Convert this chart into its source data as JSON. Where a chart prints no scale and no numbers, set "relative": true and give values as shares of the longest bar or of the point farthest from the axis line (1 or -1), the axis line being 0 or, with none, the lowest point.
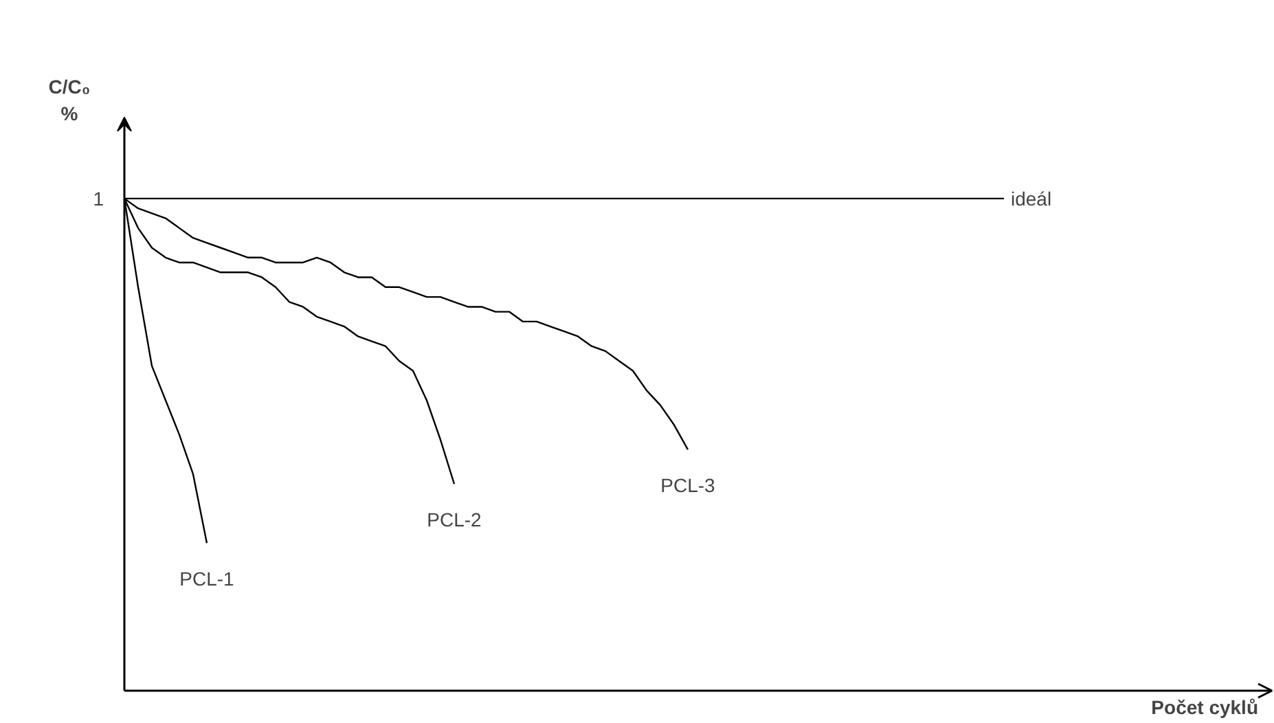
{
  "chart_data": {
    "type": "line",
    "relative": true,
    "xlabel": "Počet cyklů",
    "ylabel": "C/C₀\n%",
    "grid": false,
    "tick_labels": false,
    "annotations": [
      "1"
    ],
    "categories": [
      null,
      null,
      null,
      null,
      null,
      null,
      null,
      null,
      null,
      null,
      null,
      null,
      null,
      null,
      null,
      null,
      null,
      null,
      null,
      null,
      null,
      null,
      null,
      null,
      null,
      null,
      null,
      null,
      null,
      null,
      null,
      null,
      null,
      null,
      null,
      null,
      null,
      null,
      null,
      null,
      null,
      null,
      null,
      null,
      null,
      null,
      null,
      null,
      null,
      null,
      null,
      null,
      null,
      null,
      null,
      null,
      null,
      null,
      null,
      null,
      null,
      null,
      null,
      null,
      null,
      null,
      null,
      null,
      null,
      null,
      null,
      null,
      null,
      null,
      null,
      null,
      null,
      null,
      null,
      null,
      null,
      null,
      null,
      null
    ],
    "series": [
      {
        "name": "ideál",
        "color": "#000000",
        "values": [
          1,
          1,
          1,
          1,
          1,
          1,
          1,
          1,
          1,
          1,
          1,
          1,
          1,
          1,
          1,
          1,
          1,
          1,
          1,
          1,
          1,
          1,
          1,
          1,
          1,
          1,
          1,
          1,
          1,
          1,
          1,
          1,
          1,
          1,
          1,
          1,
          1,
          1,
          1,
          1,
          1,
          1,
          1,
          1,
          1,
          1,
          1,
          1,
          1,
          1,
          1,
          1,
          1,
          1,
          1,
          1,
          1,
          1,
          1,
          1,
          1,
          1,
          1,
          1,
          1,
          null,
          null,
          null,
          null,
          null,
          null,
          null,
          null,
          null,
          null,
          null,
          null,
          null,
          null,
          null,
          null,
          null,
          null,
          null
        ]
      },
      {
        "name": "PCL-1",
        "color": "#000000",
        "values": [
          1,
          0.82,
          0.66,
          0.59,
          0.52,
          0.44,
          0.3,
          null,
          null,
          null,
          null,
          null,
          null,
          null,
          null,
          null,
          null,
          null,
          null,
          null,
          null,
          null,
          null,
          null,
          null,
          null,
          null,
          null,
          null,
          null,
          null,
          null,
          null,
          null,
          null,
          null,
          null,
          null,
          null,
          null,
          null,
          null,
          null,
          null,
          null,
          null,
          null,
          null,
          null,
          null,
          null,
          null,
          null,
          null,
          null,
          null,
          null,
          null,
          null,
          null,
          null,
          null,
          null,
          null,
          null,
          null,
          null,
          null,
          null,
          null,
          null,
          null,
          null,
          null,
          null,
          null,
          null,
          null,
          null,
          null,
          null,
          null,
          null,
          null
        ]
      },
      {
        "name": "PCL-2",
        "color": "#000000",
        "values": [
          1,
          0.94,
          0.9,
          0.88,
          0.87,
          0.87,
          0.86,
          0.85,
          0.85,
          0.85,
          0.84,
          0.82,
          0.79,
          0.78,
          0.76,
          0.75,
          0.74,
          0.72,
          0.71,
          0.7,
          0.67,
          0.65,
          0.59,
          0.51,
          0.42,
          null,
          null,
          null,
          null,
          null,
          null,
          null,
          null,
          null,
          null,
          null,
          null,
          null,
          null,
          null,
          null,
          null,
          null,
          null,
          null,
          null,
          null,
          null,
          null,
          null,
          null,
          null,
          null,
          null,
          null,
          null,
          null,
          null,
          null,
          null,
          null,
          null,
          null,
          null,
          null,
          null,
          null,
          null,
          null,
          null,
          null,
          null,
          null,
          null,
          null,
          null,
          null,
          null,
          null,
          null,
          null,
          null,
          null,
          null
        ]
      },
      {
        "name": "PCL-3",
        "color": "#000000",
        "values": [
          1,
          0.98,
          0.97,
          0.96,
          0.94,
          0.92,
          0.91,
          0.9,
          0.89,
          0.88,
          0.88,
          0.87,
          0.87,
          0.87,
          0.88,
          0.87,
          0.85,
          0.84,
          0.84,
          0.82,
          0.82,
          0.81,
          0.8,
          0.8,
          0.79,
          0.78,
          0.78,
          0.77,
          0.77,
          0.75,
          0.75,
          0.74,
          0.73,
          0.72,
          0.7,
          0.69,
          0.67,
          0.65,
          0.61,
          0.58,
          0.54,
          0.49,
          null,
          null,
          null,
          null,
          null,
          null,
          null,
          null,
          null,
          null,
          null,
          null,
          null,
          null,
          null,
          null,
          null,
          null,
          null,
          null,
          null,
          null,
          null,
          null,
          null,
          null,
          null,
          null,
          null,
          null,
          null,
          null,
          null,
          null,
          null,
          null,
          null,
          null,
          null,
          null,
          null,
          null
        ]
      }
    ]
  }
}
